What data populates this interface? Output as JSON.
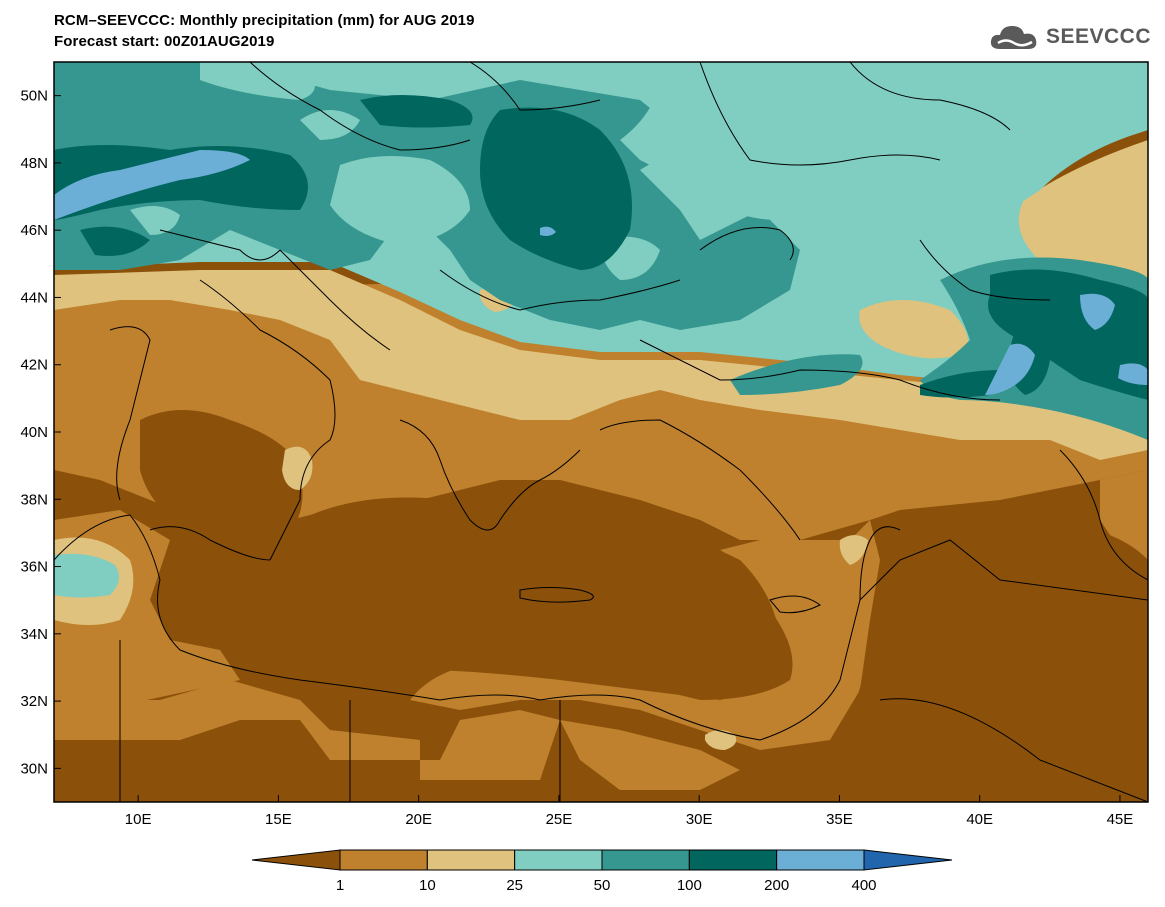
{
  "header": {
    "title": "RCM–SEEVCCC: Monthly precipitation (mm) for AUG 2019",
    "subtitle": "Forecast start: 00Z01AUG2019"
  },
  "logo": {
    "text": "SEEVCCC",
    "icon": "cloud-icon"
  },
  "map": {
    "lat_range": [
      29,
      51
    ],
    "lon_range": [
      7,
      46
    ],
    "lat_ticks": [
      {
        "value": 30,
        "label": "30N"
      },
      {
        "value": 32,
        "label": "32N"
      },
      {
        "value": 34,
        "label": "34N"
      },
      {
        "value": 36,
        "label": "36N"
      },
      {
        "value": 38,
        "label": "38N"
      },
      {
        "value": 40,
        "label": "40N"
      },
      {
        "value": 42,
        "label": "42N"
      },
      {
        "value": 44,
        "label": "44N"
      },
      {
        "value": 46,
        "label": "46N"
      },
      {
        "value": 48,
        "label": "48N"
      },
      {
        "value": 50,
        "label": "50N"
      }
    ],
    "lon_ticks": [
      {
        "value": 10,
        "label": "10E"
      },
      {
        "value": 15,
        "label": "15E"
      },
      {
        "value": 20,
        "label": "20E"
      },
      {
        "value": 25,
        "label": "25E"
      },
      {
        "value": 30,
        "label": "30E"
      },
      {
        "value": 35,
        "label": "35E"
      },
      {
        "value": 40,
        "label": "40E"
      },
      {
        "value": 45,
        "label": "45E"
      }
    ]
  },
  "colorbar": {
    "thresholds": [
      "1",
      "10",
      "25",
      "50",
      "100",
      "200",
      "400"
    ],
    "colors": [
      "#8b510a",
      "#bf812d",
      "#dfc27d",
      "#80cdc1",
      "#35978f",
      "#01665e",
      "#6baed6",
      "#2166ac"
    ]
  }
}
